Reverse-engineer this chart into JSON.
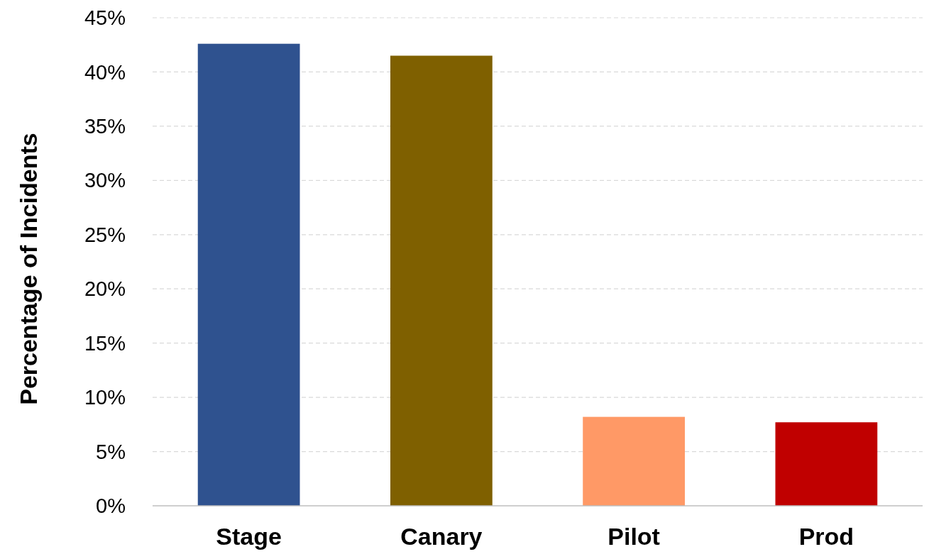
{
  "chart_data": {
    "type": "bar",
    "ylabel": "Percentage of Incidents",
    "categories": [
      "Stage",
      "Canary",
      "Pilot",
      "Prod"
    ],
    "values": [
      42.6,
      41.5,
      8.2,
      7.7
    ],
    "colors": [
      "#2f528f",
      "#7f6000",
      "#ff9966",
      "#c00000"
    ],
    "ylim": [
      0,
      45
    ],
    "yticks": [
      {
        "value": 0,
        "label": "0%"
      },
      {
        "value": 5,
        "label": "5%"
      },
      {
        "value": 10,
        "label": "10%"
      },
      {
        "value": 15,
        "label": "15%"
      },
      {
        "value": 20,
        "label": "20%"
      },
      {
        "value": 25,
        "label": "25%"
      },
      {
        "value": 30,
        "label": "30%"
      },
      {
        "value": 35,
        "label": "35%"
      },
      {
        "value": 40,
        "label": "40%"
      },
      {
        "value": 45,
        "label": "45%"
      }
    ],
    "grid": "y"
  }
}
